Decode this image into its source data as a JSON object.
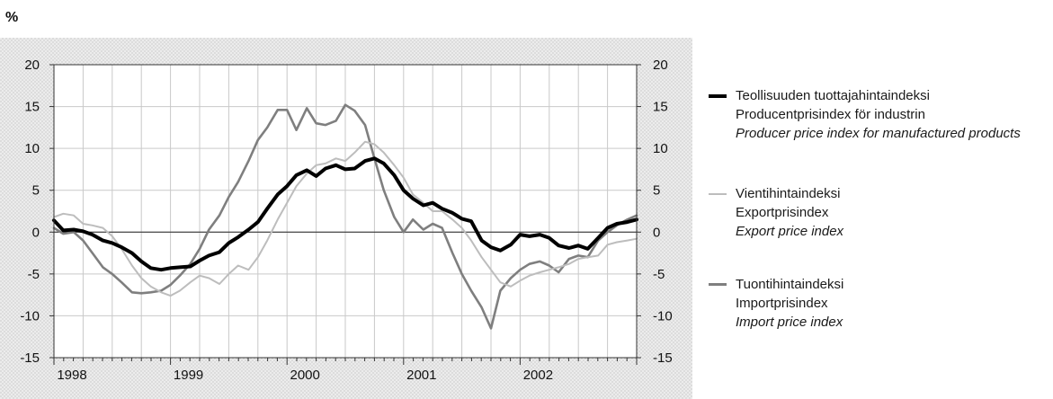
{
  "chart_data": {
    "type": "line",
    "unit_label": "%",
    "ylim": [
      -15,
      20
    ],
    "yticks": [
      20,
      15,
      10,
      5,
      0,
      -5,
      -10,
      -15
    ],
    "x_tick_labels": [
      "1998",
      "1999",
      "2000",
      "2001",
      "2002"
    ],
    "x_start": 1998.0,
    "x_end": 2003.0,
    "grid": true,
    "legend_position": "right",
    "series": [
      {
        "key": "producer",
        "name_fi": "Teollisuuden tuottajahintaindeksi",
        "name_sv": "Producentprisindex för industrin",
        "name_en": "Producer price index for manufactured products",
        "color": "#000000",
        "x": [
          1998.0,
          1998.08,
          1998.17,
          1998.25,
          1998.33,
          1998.42,
          1998.5,
          1998.58,
          1998.67,
          1998.75,
          1998.83,
          1998.92,
          1999.0,
          1999.08,
          1999.17,
          1999.25,
          1999.33,
          1999.42,
          1999.5,
          1999.58,
          1999.67,
          1999.75,
          1999.83,
          1999.92,
          2000.0,
          2000.08,
          2000.17,
          2000.25,
          2000.33,
          2000.42,
          2000.5,
          2000.58,
          2000.67,
          2000.75,
          2000.83,
          2000.92,
          2001.0,
          2001.08,
          2001.17,
          2001.25,
          2001.33,
          2001.42,
          2001.5,
          2001.58,
          2001.67,
          2001.75,
          2001.83,
          2001.92,
          2002.0,
          2002.08,
          2002.17,
          2002.25,
          2002.33,
          2002.42,
          2002.5,
          2002.58,
          2002.67,
          2002.75,
          2002.83,
          2002.92,
          2003.0
        ],
        "values": [
          1.4,
          0.2,
          0.3,
          0.1,
          -0.3,
          -1.0,
          -1.3,
          -1.8,
          -2.5,
          -3.5,
          -4.3,
          -4.5,
          -4.3,
          -4.2,
          -4.1,
          -3.4,
          -2.8,
          -2.4,
          -1.3,
          -0.6,
          0.3,
          1.2,
          2.8,
          4.5,
          5.5,
          6.8,
          7.4,
          6.7,
          7.6,
          8.0,
          7.5,
          7.6,
          8.5,
          8.8,
          8.2,
          6.8,
          5.0,
          4.0,
          3.2,
          3.5,
          2.8,
          2.3,
          1.6,
          1.3,
          -1.0,
          -1.8,
          -2.2,
          -1.5,
          -0.3,
          -0.5,
          -0.3,
          -0.7,
          -1.6,
          -1.9,
          -1.6,
          -2.0,
          -0.7,
          0.5,
          1.0,
          1.2,
          1.5
        ]
      },
      {
        "key": "export",
        "name_fi": "Vientihintaindeksi",
        "name_sv": "Exportprisindex",
        "name_en": "Export price index",
        "color": "#bdbdbd",
        "x": [
          1998.0,
          1998.08,
          1998.17,
          1998.25,
          1998.33,
          1998.42,
          1998.5,
          1998.58,
          1998.67,
          1998.75,
          1998.83,
          1998.92,
          1999.0,
          1999.08,
          1999.17,
          1999.25,
          1999.33,
          1999.42,
          1999.5,
          1999.58,
          1999.67,
          1999.75,
          1999.83,
          1999.92,
          2000.0,
          2000.08,
          2000.17,
          2000.25,
          2000.33,
          2000.42,
          2000.5,
          2000.58,
          2000.67,
          2000.75,
          2000.83,
          2000.92,
          2001.0,
          2001.08,
          2001.17,
          2001.25,
          2001.33,
          2001.42,
          2001.5,
          2001.58,
          2001.67,
          2001.75,
          2001.83,
          2001.92,
          2002.0,
          2002.08,
          2002.17,
          2002.25,
          2002.33,
          2002.42,
          2002.5,
          2002.58,
          2002.67,
          2002.75,
          2002.83,
          2002.92,
          2003.0
        ],
        "values": [
          1.8,
          2.2,
          2.0,
          1.0,
          0.8,
          0.5,
          -0.5,
          -2.0,
          -4.0,
          -5.5,
          -6.5,
          -7.2,
          -7.6,
          -7.0,
          -6.0,
          -5.2,
          -5.5,
          -6.2,
          -5.0,
          -4.0,
          -4.5,
          -3.0,
          -1.0,
          1.5,
          3.5,
          5.5,
          7.0,
          8.0,
          8.2,
          8.8,
          8.5,
          9.5,
          10.8,
          10.5,
          9.5,
          8.0,
          6.5,
          4.5,
          3.5,
          2.5,
          2.5,
          1.5,
          0.5,
          -1.0,
          -3.0,
          -4.5,
          -6.0,
          -6.5,
          -5.8,
          -5.2,
          -4.8,
          -4.5,
          -4.2,
          -3.8,
          -3.2,
          -3.0,
          -2.8,
          -1.5,
          -1.2,
          -1.0,
          -0.8
        ]
      },
      {
        "key": "import",
        "name_fi": "Tuontihintaindeksi",
        "name_sv": "Importprisindex",
        "name_en": "Import price index",
        "color": "#7f7f7f",
        "x": [
          1998.0,
          1998.08,
          1998.17,
          1998.25,
          1998.33,
          1998.42,
          1998.5,
          1998.58,
          1998.67,
          1998.75,
          1998.83,
          1998.92,
          1999.0,
          1999.08,
          1999.17,
          1999.25,
          1999.33,
          1999.42,
          1999.5,
          1999.58,
          1999.67,
          1999.75,
          1999.83,
          1999.92,
          2000.0,
          2000.08,
          2000.17,
          2000.25,
          2000.33,
          2000.42,
          2000.5,
          2000.58,
          2000.67,
          2000.75,
          2000.83,
          2000.92,
          2001.0,
          2001.08,
          2001.17,
          2001.25,
          2001.33,
          2001.42,
          2001.5,
          2001.58,
          2001.67,
          2001.75,
          2001.83,
          2001.92,
          2002.0,
          2002.08,
          2002.17,
          2002.25,
          2002.33,
          2002.42,
          2002.5,
          2002.58,
          2002.67,
          2002.75,
          2002.83,
          2002.92,
          2003.0
        ],
        "values": [
          0.5,
          -0.2,
          0.0,
          -1.0,
          -2.5,
          -4.2,
          -5.0,
          -6.0,
          -7.2,
          -7.3,
          -7.2,
          -7.0,
          -6.3,
          -5.2,
          -3.8,
          -2.0,
          0.3,
          2.0,
          4.2,
          6.0,
          8.5,
          11.0,
          12.5,
          14.6,
          14.6,
          12.2,
          14.8,
          13.0,
          12.8,
          13.3,
          15.2,
          14.5,
          12.8,
          8.8,
          5.0,
          1.8,
          0.0,
          1.5,
          0.3,
          1.0,
          0.5,
          -2.5,
          -5.0,
          -7.0,
          -9.0,
          -11.5,
          -7.0,
          -5.5,
          -4.5,
          -3.8,
          -3.5,
          -4.0,
          -4.8,
          -3.2,
          -2.8,
          -3.0,
          -1.0,
          0.0,
          0.8,
          1.5,
          2.0
        ]
      }
    ]
  }
}
